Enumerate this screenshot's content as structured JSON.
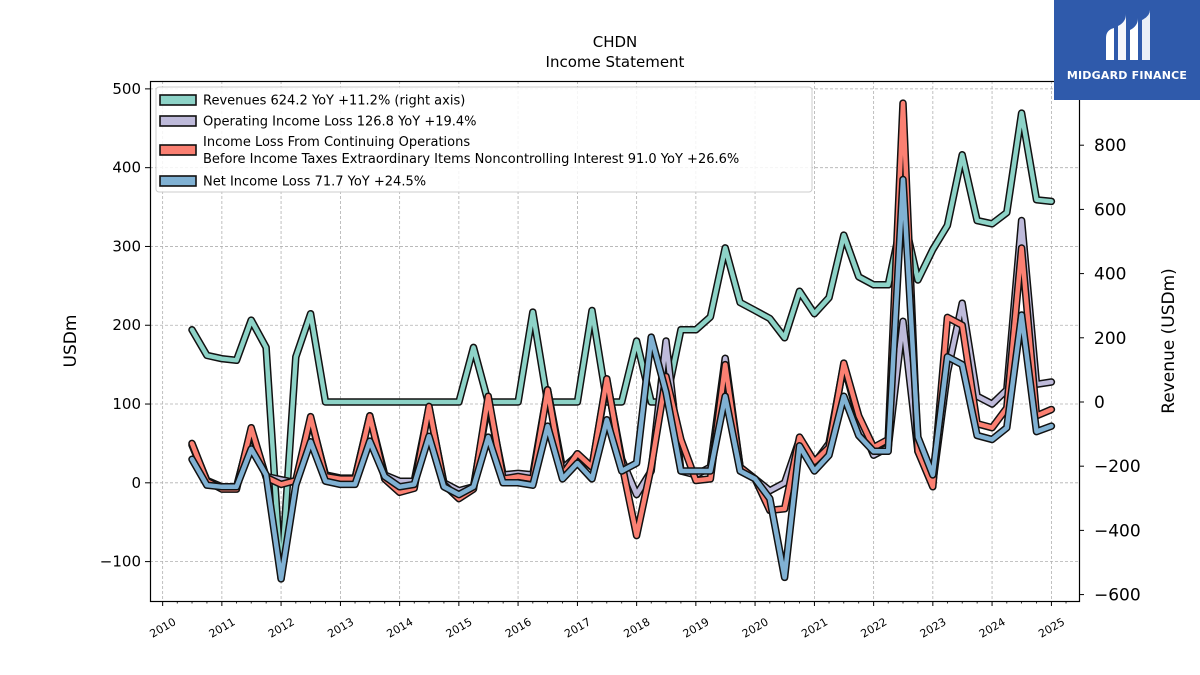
{
  "chart_data": {
    "type": "line",
    "title": "CHDN",
    "subtitle": "Income Statement",
    "ylabel": "USDm",
    "y2label": "Revenue (USDm)",
    "ylim": [
      -150,
      510
    ],
    "y2lim": [
      -620,
      1000
    ],
    "yticks": [
      "500",
      "400",
      "300",
      "200",
      "100",
      "0",
      "−100"
    ],
    "y2ticks": [
      "800",
      "600",
      "400",
      "200",
      "0",
      "−200",
      "−400",
      "−600"
    ],
    "xticks": [
      "2010",
      "2011",
      "2012",
      "2013",
      "2014",
      "2015",
      "2016",
      "2017",
      "2018",
      "2019",
      "2020",
      "2021",
      "2022",
      "2023",
      "2024",
      "2025"
    ],
    "grid": true,
    "legend_position": "top-left",
    "x": [
      "2010-07-01",
      "2010-10-01",
      "2011-01-01",
      "2011-04-01",
      "2011-07-01",
      "2011-10-01",
      "2012-01-01",
      "2012-04-01",
      "2012-07-01",
      "2012-10-01",
      "2013-01-01",
      "2013-04-01",
      "2013-07-01",
      "2013-10-01",
      "2014-01-01",
      "2014-04-01",
      "2014-07-01",
      "2014-10-01",
      "2015-01-01",
      "2015-04-01",
      "2015-07-01",
      "2015-10-01",
      "2016-01-01",
      "2016-04-01",
      "2016-07-01",
      "2016-10-01",
      "2017-01-01",
      "2017-04-01",
      "2017-07-01",
      "2017-10-01",
      "2018-01-01",
      "2018-04-01",
      "2018-07-01",
      "2018-10-01",
      "2019-01-01",
      "2019-04-01",
      "2019-07-01",
      "2019-10-01",
      "2020-01-01",
      "2020-04-01",
      "2020-07-01",
      "2020-10-01",
      "2021-01-01",
      "2021-04-01",
      "2021-07-01",
      "2021-10-01",
      "2022-01-01",
      "2022-04-01",
      "2022-07-01",
      "2022-10-01",
      "2023-01-01",
      "2023-04-01",
      "2023-07-01",
      "2023-10-01",
      "2024-01-01",
      "2024-04-01",
      "2024-07-01",
      "2024-10-01",
      "2025-01-01"
    ],
    "series": [
      {
        "name": "Revenues",
        "legend": "Revenues  624.2 YoY +11.2% (right axis)",
        "axis": "right",
        "color": "#8dd3c7",
        "values": [
          225,
          145,
          135,
          130,
          255,
          170,
          -550,
          140,
          275,
          0,
          0,
          0,
          0,
          0,
          0,
          0,
          0,
          0,
          0,
          170,
          0,
          0,
          0,
          280,
          0,
          0,
          0,
          285,
          0,
          0,
          190,
          0,
          0,
          225,
          225,
          265,
          480,
          310,
          285,
          260,
          200,
          345,
          275,
          325,
          520,
          390,
          365,
          365,
          585,
          380,
          475,
          550,
          770,
          565,
          555,
          590,
          900,
          630,
          625
        ]
      },
      {
        "name": "Operating Income Loss",
        "legend": "Operating Income Loss  126.8 YoY +19.4%",
        "axis": "left",
        "color": "#bebada",
        "values": [
          48,
          3,
          -5,
          -5,
          66,
          8,
          4,
          0,
          82,
          10,
          6,
          6,
          85,
          10,
          2,
          2,
          95,
          0,
          -10,
          -5,
          103,
          10,
          12,
          10,
          118,
          18,
          35,
          20,
          130,
          30,
          -15,
          15,
          180,
          15,
          10,
          20,
          158,
          20,
          5,
          -10,
          0,
          55,
          25,
          50,
          150,
          80,
          35,
          45,
          205,
          40,
          0,
          140,
          228,
          110,
          100,
          118,
          333,
          125,
          128
        ]
      },
      {
        "name": "Income Loss From Continuing Operations Before Income Taxes Extraordinary Items Noncontrolling Interest",
        "legend_lines": [
          "Income Loss From Continuing Operations",
          "Before Income Taxes Extraordinary Items Noncontrolling Interest  91.0 YoY +26.6%"
        ],
        "axis": "left",
        "color": "#fb8072",
        "values": [
          50,
          2,
          -8,
          -8,
          70,
          7,
          -2,
          3,
          84,
          8,
          5,
          5,
          85,
          5,
          -12,
          -7,
          97,
          -2,
          -20,
          -8,
          110,
          5,
          8,
          5,
          118,
          10,
          37,
          20,
          132,
          25,
          -67,
          20,
          135,
          55,
          3,
          5,
          150,
          20,
          5,
          -35,
          -33,
          58,
          27,
          45,
          152,
          85,
          45,
          55,
          482,
          40,
          -5,
          210,
          200,
          75,
          70,
          95,
          298,
          85,
          93
        ]
      },
      {
        "name": "Net Income Loss",
        "legend": "Net Income Loss  71.7 YoY +24.5%",
        "axis": "left",
        "color": "#80b1d3",
        "values": [
          30,
          -3,
          -5,
          -5,
          43,
          10,
          -122,
          -3,
          52,
          2,
          -2,
          -2,
          53,
          8,
          -5,
          -2,
          59,
          -5,
          -15,
          -5,
          58,
          0,
          0,
          -3,
          72,
          5,
          25,
          5,
          80,
          15,
          25,
          185,
          115,
          15,
          15,
          15,
          110,
          15,
          5,
          -20,
          -120,
          47,
          15,
          35,
          110,
          60,
          40,
          40,
          385,
          58,
          10,
          160,
          150,
          60,
          55,
          70,
          213,
          65,
          72
        ]
      }
    ]
  },
  "logo": {
    "text": "MIDGARD FINANCE"
  }
}
